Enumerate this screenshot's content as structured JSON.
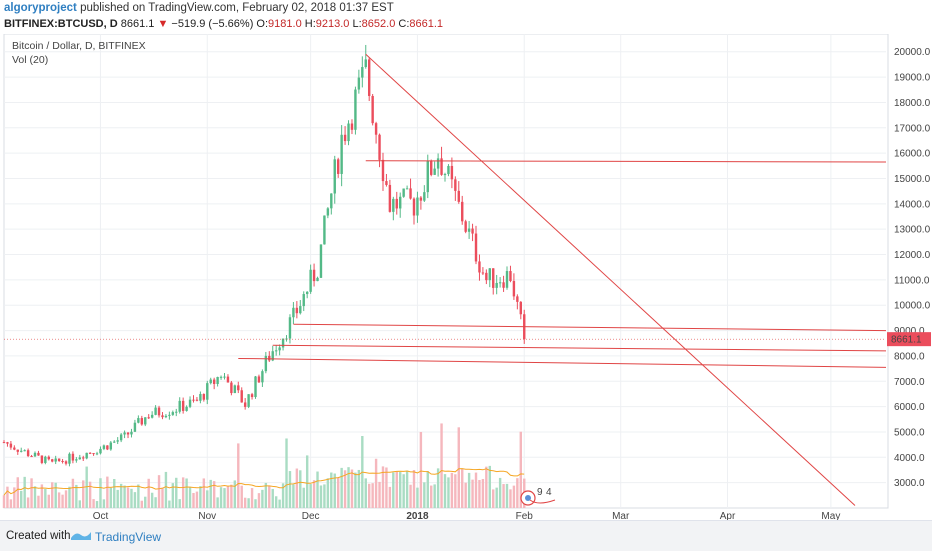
{
  "header": {
    "author": "algoryproject",
    "published_text": "published on TradingView.com, February 02, 2018 01:37 EST",
    "symbol": "BITFINEX:BTCUSD, D",
    "last_price": "8661.1",
    "change_arrow": "▼",
    "change": "−519.9 (−5.66%)",
    "o_label": "O:",
    "o_value": "9181.0",
    "h_label": "H:",
    "h_value": "9213.0",
    "l_label": "L:",
    "l_value": "8652.0",
    "c_label": "C:",
    "c_value": "8661.1"
  },
  "footer": {
    "created_with": "Created with",
    "brand": "TradingView"
  },
  "colors": {
    "up": "#53b987",
    "down": "#eb4d5c",
    "line": "#e04545",
    "ma": "#f5a623",
    "price_label_bg": "#eb4d5c"
  },
  "chart_data": {
    "type": "candlestick",
    "title": "Bitcoin / Dollar, D, BITFINEX",
    "indicator": "Vol (20)",
    "y_ticks": [
      "20000.0",
      "19000.0",
      "18000.0",
      "17000.0",
      "16000.0",
      "15000.0",
      "14000.0",
      "13000.0",
      "12000.0",
      "11000.0",
      "10000.0",
      "9000.0",
      "8000.0",
      "7000.0",
      "6000.0",
      "5000.0",
      "4000.0",
      "3000.0"
    ],
    "y_range": [
      2000,
      20700
    ],
    "x_ticks": [
      {
        "label": "Oct",
        "date": "2017-10-01"
      },
      {
        "label": "Nov",
        "date": "2017-11-01"
      },
      {
        "label": "Dec",
        "date": "2017-12-01"
      },
      {
        "label": "2018",
        "date": "2018-01-01"
      },
      {
        "label": "Feb",
        "date": "2018-02-01"
      },
      {
        "label": "Mar",
        "date": "2018-03-01"
      },
      {
        "label": "Apr",
        "date": "2018-04-01"
      },
      {
        "label": "May",
        "date": "2018-05-01"
      }
    ],
    "x_range": [
      "2017-09-03",
      "2018-05-17"
    ],
    "current_price_label": "8661.1",
    "current_price": 8661.1,
    "weekly_closes": [
      {
        "date": "2017-09-03",
        "close": 4600
      },
      {
        "date": "2017-09-10",
        "close": 4150
      },
      {
        "date": "2017-09-17",
        "close": 3750
      },
      {
        "date": "2017-09-24",
        "close": 4050
      },
      {
        "date": "2017-10-01",
        "close": 4350
      },
      {
        "date": "2017-10-08",
        "close": 4800
      },
      {
        "date": "2017-10-15",
        "close": 5700
      },
      {
        "date": "2017-10-22",
        "close": 5900
      },
      {
        "date": "2017-10-29",
        "close": 6200
      },
      {
        "date": "2017-11-05",
        "close": 7300
      },
      {
        "date": "2017-11-12",
        "close": 6100
      },
      {
        "date": "2017-11-19",
        "close": 8000
      },
      {
        "date": "2017-11-26",
        "close": 9500
      },
      {
        "date": "2017-12-03",
        "close": 11500
      },
      {
        "date": "2017-12-10",
        "close": 16600
      },
      {
        "date": "2017-12-17",
        "close": 19200
      },
      {
        "date": "2017-12-24",
        "close": 14000
      },
      {
        "date": "2017-12-31",
        "close": 14000
      },
      {
        "date": "2018-01-07",
        "close": 16000
      },
      {
        "date": "2018-01-14",
        "close": 13500
      },
      {
        "date": "2018-01-21",
        "close": 11000
      },
      {
        "date": "2018-01-28",
        "close": 11200
      },
      {
        "date": "2018-02-01",
        "close": 8661.1
      }
    ],
    "lines": [
      {
        "name": "trendline",
        "from": {
          "date": "2017-12-17",
          "price": 19900
        },
        "to": {
          "date": "2018-05-08",
          "price": 2100
        }
      },
      {
        "name": "resistance",
        "from": {
          "date": "2017-12-17",
          "price": 15700
        },
        "to": {
          "date": "2018-05-17",
          "price": 15650
        }
      },
      {
        "name": "support-1",
        "from": {
          "date": "2017-11-26",
          "price": 9250
        },
        "to": {
          "date": "2018-05-17",
          "price": 9000
        }
      },
      {
        "name": "support-2",
        "from": {
          "date": "2017-11-20",
          "price": 8420
        },
        "to": {
          "date": "2018-05-17",
          "price": 8200
        }
      },
      {
        "name": "support-3",
        "from": {
          "date": "2017-11-10",
          "price": 7900
        },
        "to": {
          "date": "2018-05-17",
          "price": 7550
        }
      }
    ],
    "events_badge": [
      "9",
      "4"
    ]
  }
}
